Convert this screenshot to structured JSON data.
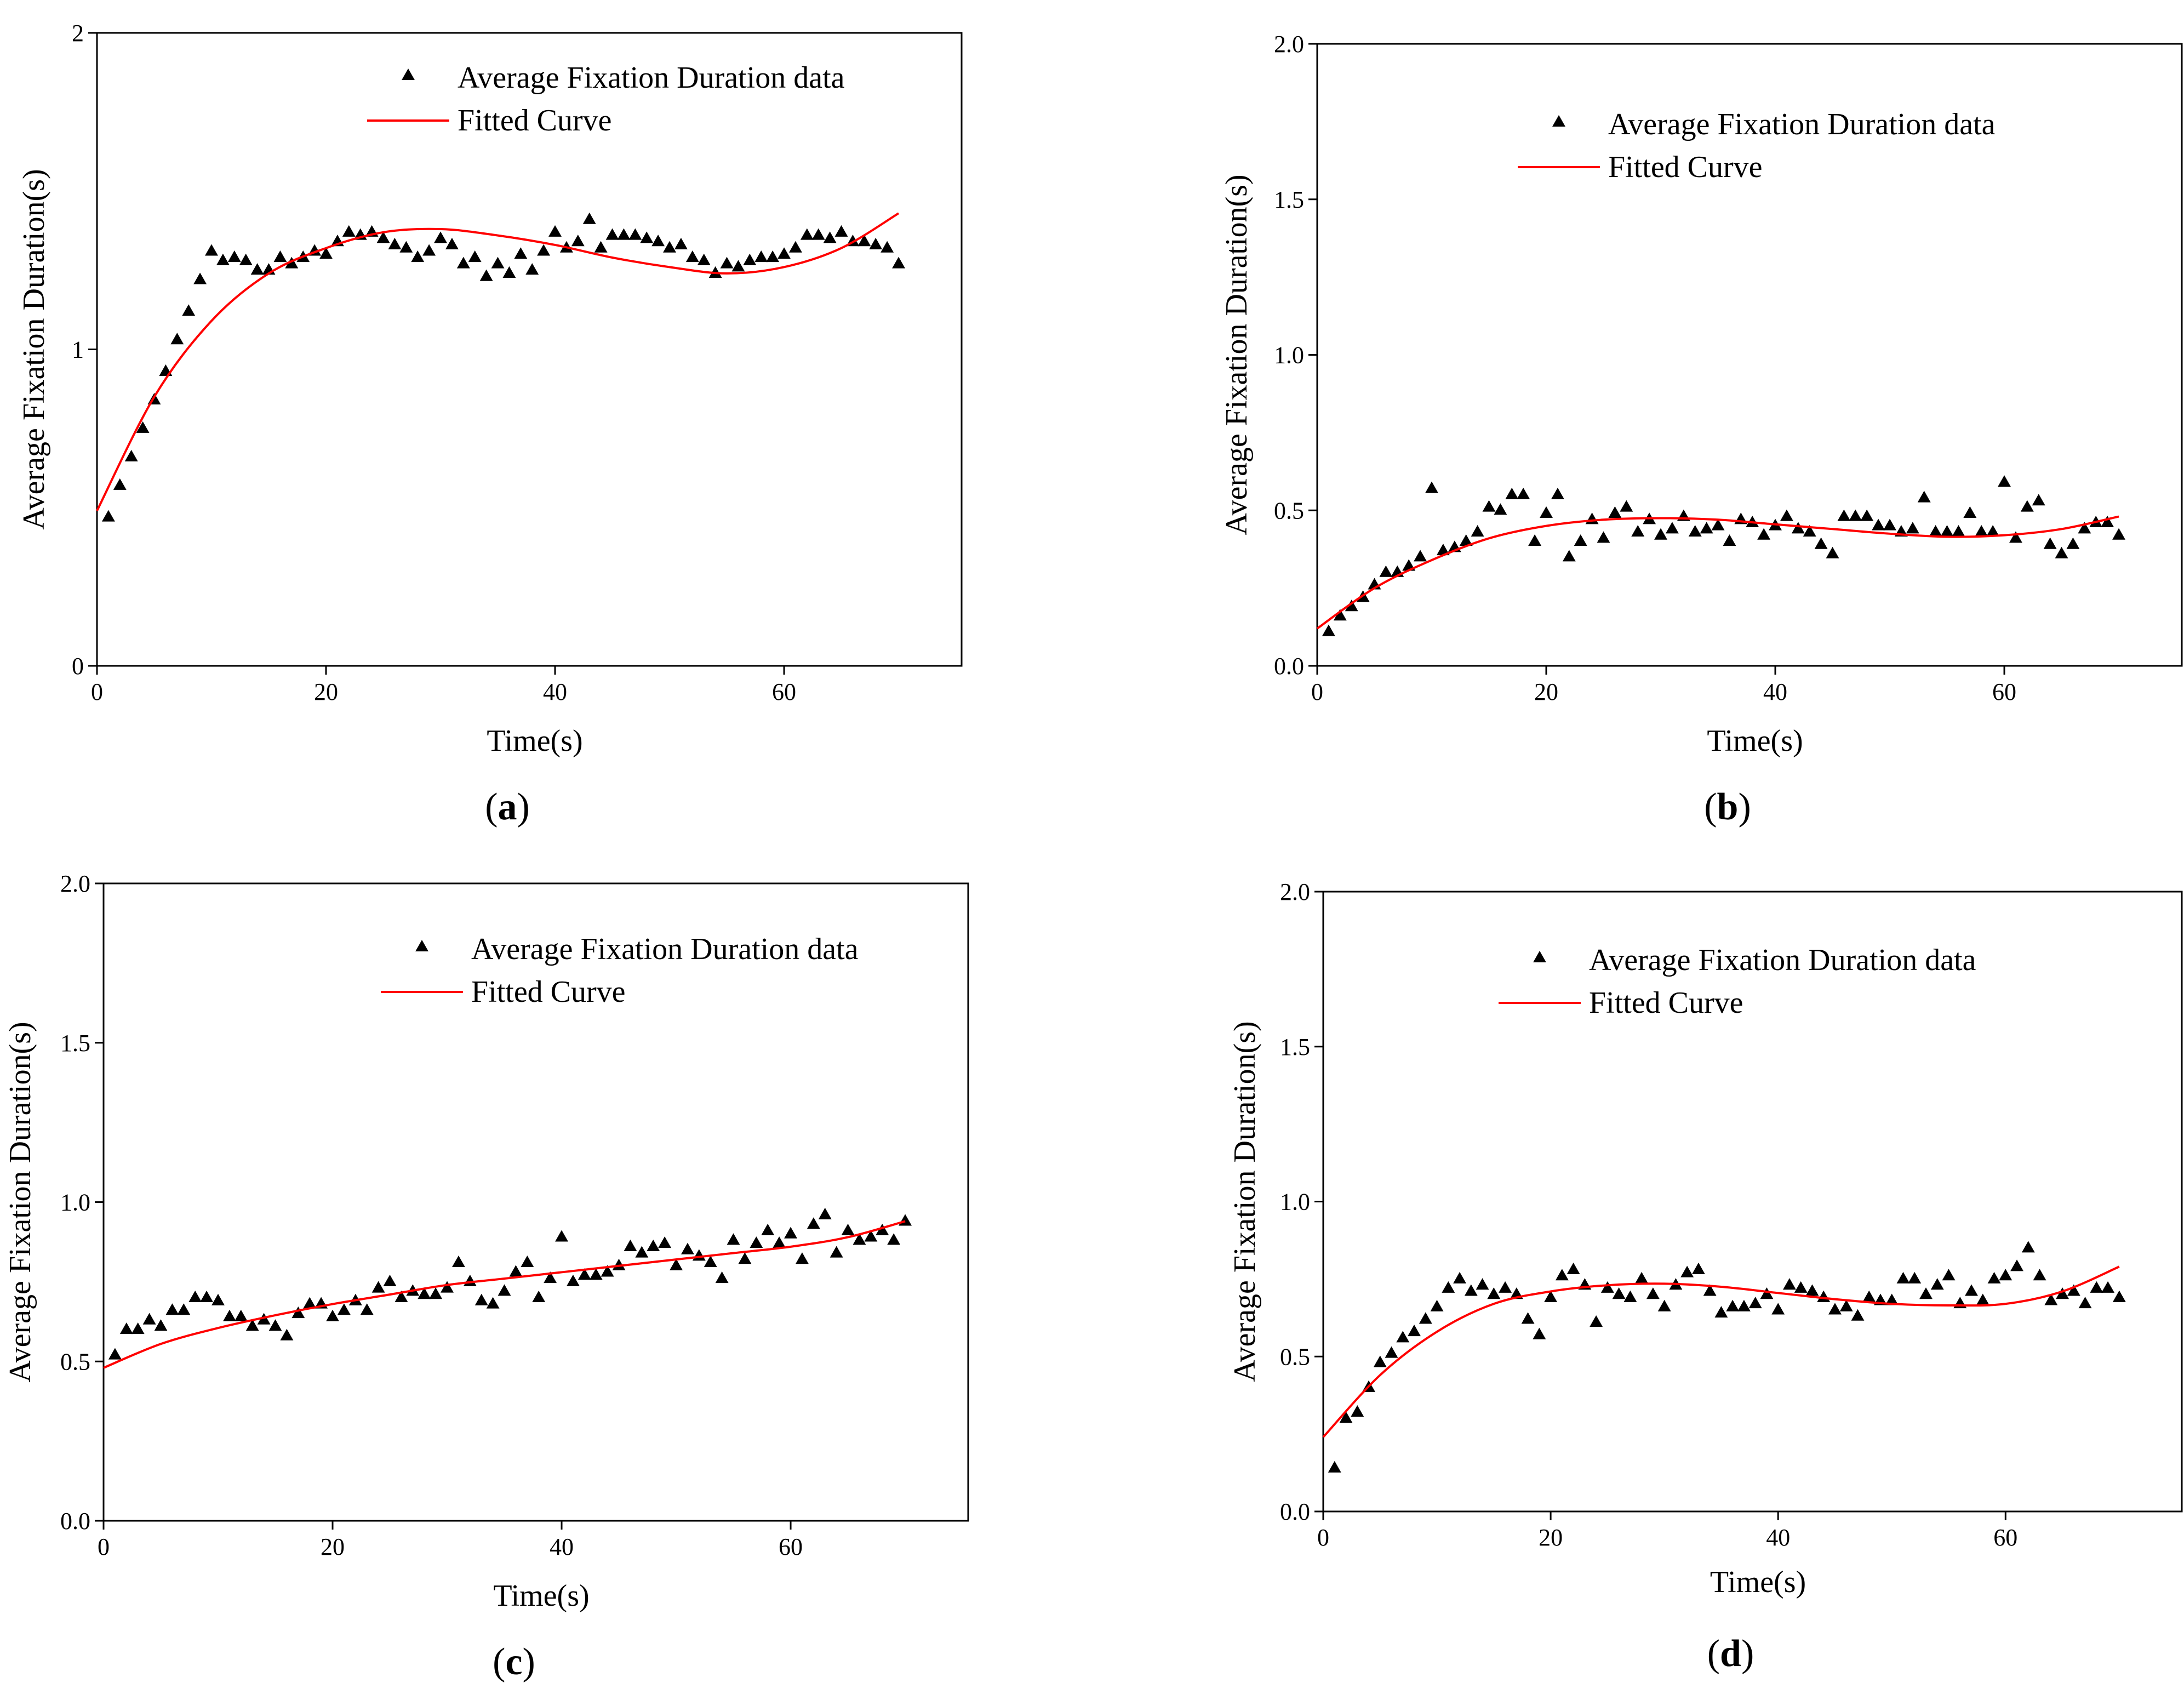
{
  "colors": {
    "axis": "#000000",
    "marker": "#000000",
    "curve": "#ff0000",
    "background": "#ffffff"
  },
  "chart_data": [
    {
      "type": "scatter",
      "panel_label": "a",
      "xlabel": "Time(s)",
      "ylabel": "Average Fixation Duration(s)",
      "xlim": [
        0,
        75.5
      ],
      "ylim": [
        0,
        2
      ],
      "xticks": [
        "0",
        "20",
        "40",
        "60"
      ],
      "yticks": [
        "0",
        "1",
        "2"
      ],
      "legend_position": "top-right",
      "series": [
        {
          "name": "Average Fixation Duration data",
          "kind": "markers",
          "marker": "triangle",
          "x": [
            1,
            2,
            3,
            4,
            5,
            6,
            7,
            8,
            9,
            10,
            11,
            12,
            13,
            14,
            15,
            16,
            17,
            18,
            19,
            20,
            21,
            22,
            23,
            24,
            25,
            26,
            27,
            28,
            29,
            30,
            31,
            32,
            33,
            34,
            35,
            36,
            37,
            38,
            39,
            40,
            41,
            42,
            43,
            44,
            45,
            46,
            47,
            48,
            49,
            50,
            51,
            52,
            53,
            54,
            55,
            56,
            57,
            58,
            59,
            60,
            61,
            62,
            63,
            64,
            65,
            66,
            67,
            68,
            69,
            70
          ],
          "y": [
            0.47,
            0.57,
            0.66,
            0.75,
            0.84,
            0.93,
            1.03,
            1.12,
            1.22,
            1.31,
            1.28,
            1.29,
            1.28,
            1.25,
            1.25,
            1.29,
            1.27,
            1.29,
            1.31,
            1.3,
            1.34,
            1.37,
            1.36,
            1.37,
            1.35,
            1.33,
            1.32,
            1.29,
            1.31,
            1.35,
            1.33,
            1.27,
            1.29,
            1.23,
            1.27,
            1.24,
            1.3,
            1.25,
            1.31,
            1.37,
            1.32,
            1.34,
            1.41,
            1.32,
            1.36,
            1.36,
            1.36,
            1.35,
            1.34,
            1.32,
            1.33,
            1.29,
            1.28,
            1.24,
            1.27,
            1.26,
            1.28,
            1.29,
            1.29,
            1.3,
            1.32,
            1.36,
            1.36,
            1.35,
            1.37,
            1.34,
            1.34,
            1.33,
            1.32,
            1.27
          ]
        },
        {
          "name": "Fitted Curve",
          "kind": "curve",
          "x": [
            0,
            5,
            10,
            15,
            20,
            25,
            30,
            35,
            40,
            45,
            50,
            55,
            60,
            65,
            70
          ],
          "y": [
            0.49,
            0.85,
            1.09,
            1.24,
            1.32,
            1.37,
            1.38,
            1.36,
            1.33,
            1.29,
            1.26,
            1.24,
            1.26,
            1.32,
            1.43
          ]
        }
      ]
    },
    {
      "type": "scatter",
      "panel_label": "b",
      "xlabel": "Time(s)",
      "ylabel": "Average Fixation Duration(s)",
      "xlim": [
        0,
        75.5
      ],
      "ylim": [
        0,
        2
      ],
      "xticks": [
        "0",
        "20",
        "40",
        "60"
      ],
      "yticks": [
        "0.0",
        "0.5",
        "1.0",
        "1.5",
        "2.0"
      ],
      "legend_position": "top-right",
      "series": [
        {
          "name": "Average Fixation Duration data",
          "kind": "markers",
          "marker": "triangle",
          "x": [
            1,
            2,
            3,
            4,
            5,
            6,
            7,
            8,
            9,
            10,
            11,
            12,
            13,
            14,
            15,
            16,
            17,
            18,
            19,
            20,
            21,
            22,
            23,
            24,
            25,
            26,
            27,
            28,
            29,
            30,
            31,
            32,
            33,
            34,
            35,
            36,
            37,
            38,
            39,
            40,
            41,
            42,
            43,
            44,
            45,
            46,
            47,
            48,
            49,
            50,
            51,
            52,
            53,
            54,
            55,
            56,
            57,
            58,
            59,
            60,
            61,
            62,
            63,
            64,
            65,
            66,
            67,
            68,
            69,
            70
          ],
          "y": [
            0.11,
            0.16,
            0.19,
            0.22,
            0.26,
            0.3,
            0.3,
            0.32,
            0.35,
            0.57,
            0.37,
            0.38,
            0.4,
            0.43,
            0.51,
            0.5,
            0.55,
            0.55,
            0.4,
            0.49,
            0.55,
            0.35,
            0.4,
            0.47,
            0.41,
            0.49,
            0.51,
            0.43,
            0.47,
            0.42,
            0.44,
            0.48,
            0.43,
            0.44,
            0.45,
            0.4,
            0.47,
            0.46,
            0.42,
            0.45,
            0.48,
            0.44,
            0.43,
            0.39,
            0.36,
            0.48,
            0.48,
            0.48,
            0.45,
            0.45,
            0.43,
            0.44,
            0.54,
            0.43,
            0.43,
            0.43,
            0.49,
            0.43,
            0.43,
            0.59,
            0.41,
            0.51,
            0.53,
            0.39,
            0.36,
            0.39,
            0.44,
            0.46,
            0.46,
            0.42
          ]
        },
        {
          "name": "Fitted Curve",
          "kind": "curve",
          "x": [
            0,
            5,
            10,
            15,
            20,
            25,
            30,
            35,
            40,
            45,
            50,
            55,
            60,
            65,
            70
          ],
          "y": [
            0.12,
            0.25,
            0.34,
            0.41,
            0.45,
            0.47,
            0.475,
            0.47,
            0.455,
            0.44,
            0.425,
            0.415,
            0.42,
            0.44,
            0.48
          ]
        }
      ]
    },
    {
      "type": "scatter",
      "panel_label": "c",
      "xlabel": "Time(s)",
      "ylabel": "Average Fixation Duration(s)",
      "xlim": [
        0,
        75.5
      ],
      "ylim": [
        0,
        2
      ],
      "xticks": [
        "0",
        "20",
        "40",
        "60"
      ],
      "yticks": [
        "0.0",
        "0.5",
        "1.0",
        "1.5",
        "2.0"
      ],
      "legend_position": "top-right",
      "series": [
        {
          "name": "Average Fixation Duration data",
          "kind": "markers",
          "marker": "triangle",
          "x": [
            1,
            2,
            3,
            4,
            5,
            6,
            7,
            8,
            9,
            10,
            11,
            12,
            13,
            14,
            15,
            16,
            17,
            18,
            19,
            20,
            21,
            22,
            23,
            24,
            25,
            26,
            27,
            28,
            29,
            30,
            31,
            32,
            33,
            34,
            35,
            36,
            37,
            38,
            39,
            40,
            41,
            42,
            43,
            44,
            45,
            46,
            47,
            48,
            49,
            50,
            51,
            52,
            53,
            54,
            55,
            56,
            57,
            58,
            59,
            60,
            61,
            62,
            63,
            64,
            65,
            66,
            67,
            68,
            69,
            70
          ],
          "y": [
            0.52,
            0.6,
            0.6,
            0.63,
            0.61,
            0.66,
            0.66,
            0.7,
            0.7,
            0.69,
            0.64,
            0.64,
            0.61,
            0.63,
            0.61,
            0.58,
            0.65,
            0.68,
            0.68,
            0.64,
            0.66,
            0.69,
            0.66,
            0.73,
            0.75,
            0.7,
            0.72,
            0.71,
            0.71,
            0.73,
            0.81,
            0.75,
            0.69,
            0.68,
            0.72,
            0.78,
            0.81,
            0.7,
            0.76,
            0.89,
            0.75,
            0.77,
            0.77,
            0.78,
            0.8,
            0.86,
            0.84,
            0.86,
            0.87,
            0.8,
            0.85,
            0.83,
            0.81,
            0.76,
            0.88,
            0.82,
            0.87,
            0.91,
            0.87,
            0.9,
            0.82,
            0.93,
            0.96,
            0.84,
            0.91,
            0.88,
            0.89,
            0.91,
            0.88,
            0.94
          ]
        },
        {
          "name": "Fitted Curve",
          "kind": "curve",
          "x": [
            0,
            5,
            10,
            15,
            20,
            25,
            30,
            35,
            40,
            45,
            50,
            55,
            60,
            65,
            70
          ],
          "y": [
            0.48,
            0.555,
            0.605,
            0.645,
            0.68,
            0.71,
            0.74,
            0.76,
            0.78,
            0.8,
            0.82,
            0.84,
            0.86,
            0.89,
            0.94
          ]
        }
      ]
    },
    {
      "type": "scatter",
      "panel_label": "d",
      "xlabel": "Time(s)",
      "ylabel": "Average Fixation Duration(s)",
      "xlim": [
        0,
        75.5
      ],
      "ylim": [
        0,
        2
      ],
      "xticks": [
        "0",
        "20",
        "40",
        "60"
      ],
      "yticks": [
        "0.0",
        "0.5",
        "1.0",
        "1.5",
        "2.0"
      ],
      "legend_position": "top-right",
      "series": [
        {
          "name": "Average Fixation Duration data",
          "kind": "markers",
          "marker": "triangle",
          "x": [
            1,
            2,
            3,
            4,
            5,
            6,
            7,
            8,
            9,
            10,
            11,
            12,
            13,
            14,
            15,
            16,
            17,
            18,
            19,
            20,
            21,
            22,
            23,
            24,
            25,
            26,
            27,
            28,
            29,
            30,
            31,
            32,
            33,
            34,
            35,
            36,
            37,
            38,
            39,
            40,
            41,
            42,
            43,
            44,
            45,
            46,
            47,
            48,
            49,
            50,
            51,
            52,
            53,
            54,
            55,
            56,
            57,
            58,
            59,
            60,
            61,
            62,
            63,
            64,
            65,
            66,
            67,
            68,
            69,
            70
          ],
          "y": [
            0.14,
            0.3,
            0.32,
            0.4,
            0.48,
            0.51,
            0.56,
            0.58,
            0.62,
            0.66,
            0.72,
            0.75,
            0.71,
            0.73,
            0.7,
            0.72,
            0.7,
            0.62,
            0.57,
            0.69,
            0.76,
            0.78,
            0.73,
            0.61,
            0.72,
            0.7,
            0.69,
            0.75,
            0.7,
            0.66,
            0.73,
            0.77,
            0.78,
            0.71,
            0.64,
            0.66,
            0.66,
            0.67,
            0.7,
            0.65,
            0.73,
            0.72,
            0.71,
            0.69,
            0.65,
            0.66,
            0.63,
            0.69,
            0.68,
            0.68,
            0.75,
            0.75,
            0.7,
            0.73,
            0.76,
            0.67,
            0.71,
            0.68,
            0.75,
            0.76,
            0.79,
            0.85,
            0.76,
            0.68,
            0.7,
            0.71,
            0.67,
            0.72,
            0.72,
            0.69
          ]
        },
        {
          "name": "Fitted Curve",
          "kind": "curve",
          "x": [
            0,
            5,
            10,
            15,
            20,
            25,
            30,
            35,
            40,
            45,
            50,
            55,
            60,
            65,
            70
          ],
          "y": [
            0.24,
            0.44,
            0.58,
            0.67,
            0.71,
            0.73,
            0.735,
            0.725,
            0.705,
            0.685,
            0.67,
            0.665,
            0.67,
            0.71,
            0.79
          ]
        }
      ]
    }
  ]
}
